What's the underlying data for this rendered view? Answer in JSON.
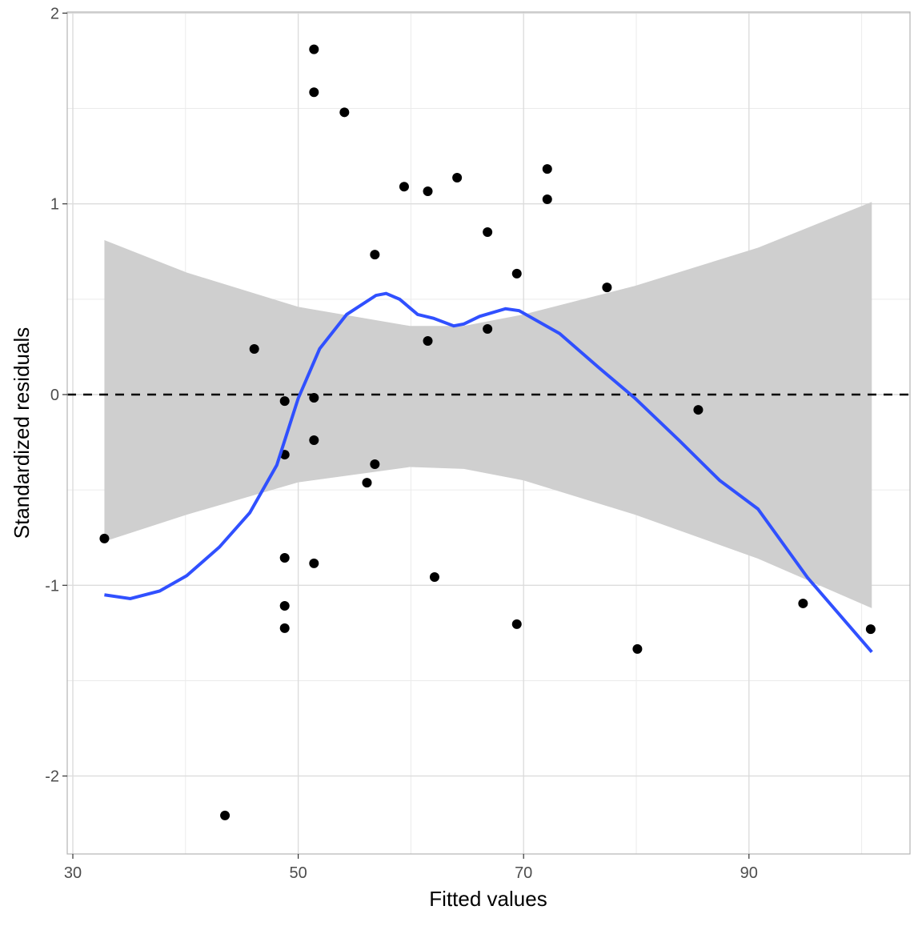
{
  "chart_data": {
    "type": "scatter",
    "title": "",
    "xlabel": "Fitted values",
    "ylabel": "Standardized residuals",
    "xlim": [
      27.5,
      102.5
    ],
    "ylim": [
      -2.4,
      2.05
    ],
    "x_ticks": [
      30,
      50,
      70,
      90
    ],
    "y_ticks": [
      -2,
      -1,
      0,
      1,
      2
    ],
    "x_tick_labels": [
      "30",
      "50",
      "70",
      "90"
    ],
    "y_tick_labels": [
      "-2",
      "-1",
      "0",
      "1",
      "2"
    ],
    "grid": true,
    "reference_line": {
      "y": 0,
      "style": "dashed",
      "color": "#000000"
    },
    "points": {
      "color": "#000000",
      "x": [
        32.8,
        51.4,
        51.4,
        54.1,
        59.4,
        61.5,
        64.1,
        72.1,
        72.1,
        66.8,
        56.8,
        69.4,
        77.4,
        46.1,
        61.5,
        66.8,
        48.8,
        51.4,
        85.5,
        51.4,
        48.8,
        56.8,
        56.1,
        48.8,
        51.4,
        62.1,
        48.8,
        48.8,
        69.4,
        80.1,
        94.8,
        100.8,
        43.5
      ],
      "y": [
        -0.755,
        1.81,
        1.585,
        1.48,
        1.09,
        1.066,
        1.137,
        1.183,
        1.024,
        0.852,
        0.734,
        0.634,
        0.562,
        0.239,
        0.281,
        0.344,
        -0.034,
        -0.017,
        -0.08,
        -0.239,
        -0.315,
        -0.365,
        -0.462,
        -0.856,
        -0.885,
        -0.957,
        -1.108,
        -1.225,
        -1.204,
        -1.334,
        -1.095,
        -1.23,
        -2.207
      ]
    },
    "smooth": {
      "color": "#3050FF",
      "band_color": "#CFCFCF",
      "x": [
        32.8,
        35.1,
        37.7,
        40.1,
        43.0,
        45.7,
        48.1,
        50.0,
        51.9,
        54.3,
        56.9,
        57.8,
        59.0,
        60.6,
        62.0,
        63.8,
        64.7,
        66.1,
        68.4,
        69.6,
        73.2,
        76.7,
        79.9,
        83.8,
        87.4,
        90.8,
        95.2,
        100.9
      ],
      "y": [
        -1.05,
        -1.07,
        -1.03,
        -0.95,
        -0.8,
        -0.62,
        -0.37,
        -0.02,
        0.24,
        0.42,
        0.52,
        0.53,
        0.5,
        0.42,
        0.4,
        0.36,
        0.37,
        0.41,
        0.45,
        0.44,
        0.32,
        0.14,
        -0.02,
        -0.24,
        -0.45,
        -0.6,
        -0.96,
        -1.35
      ],
      "band_x": [
        32.8,
        40.1,
        50.0,
        59.9,
        64.7,
        70.0,
        79.9,
        90.8,
        100.9
      ],
      "band_upper": [
        0.81,
        0.64,
        0.46,
        0.36,
        0.36,
        0.42,
        0.57,
        0.77,
        1.01
      ],
      "band_lower": [
        -0.77,
        -0.63,
        -0.46,
        -0.38,
        -0.39,
        -0.45,
        -0.63,
        -0.86,
        -1.12
      ]
    }
  }
}
